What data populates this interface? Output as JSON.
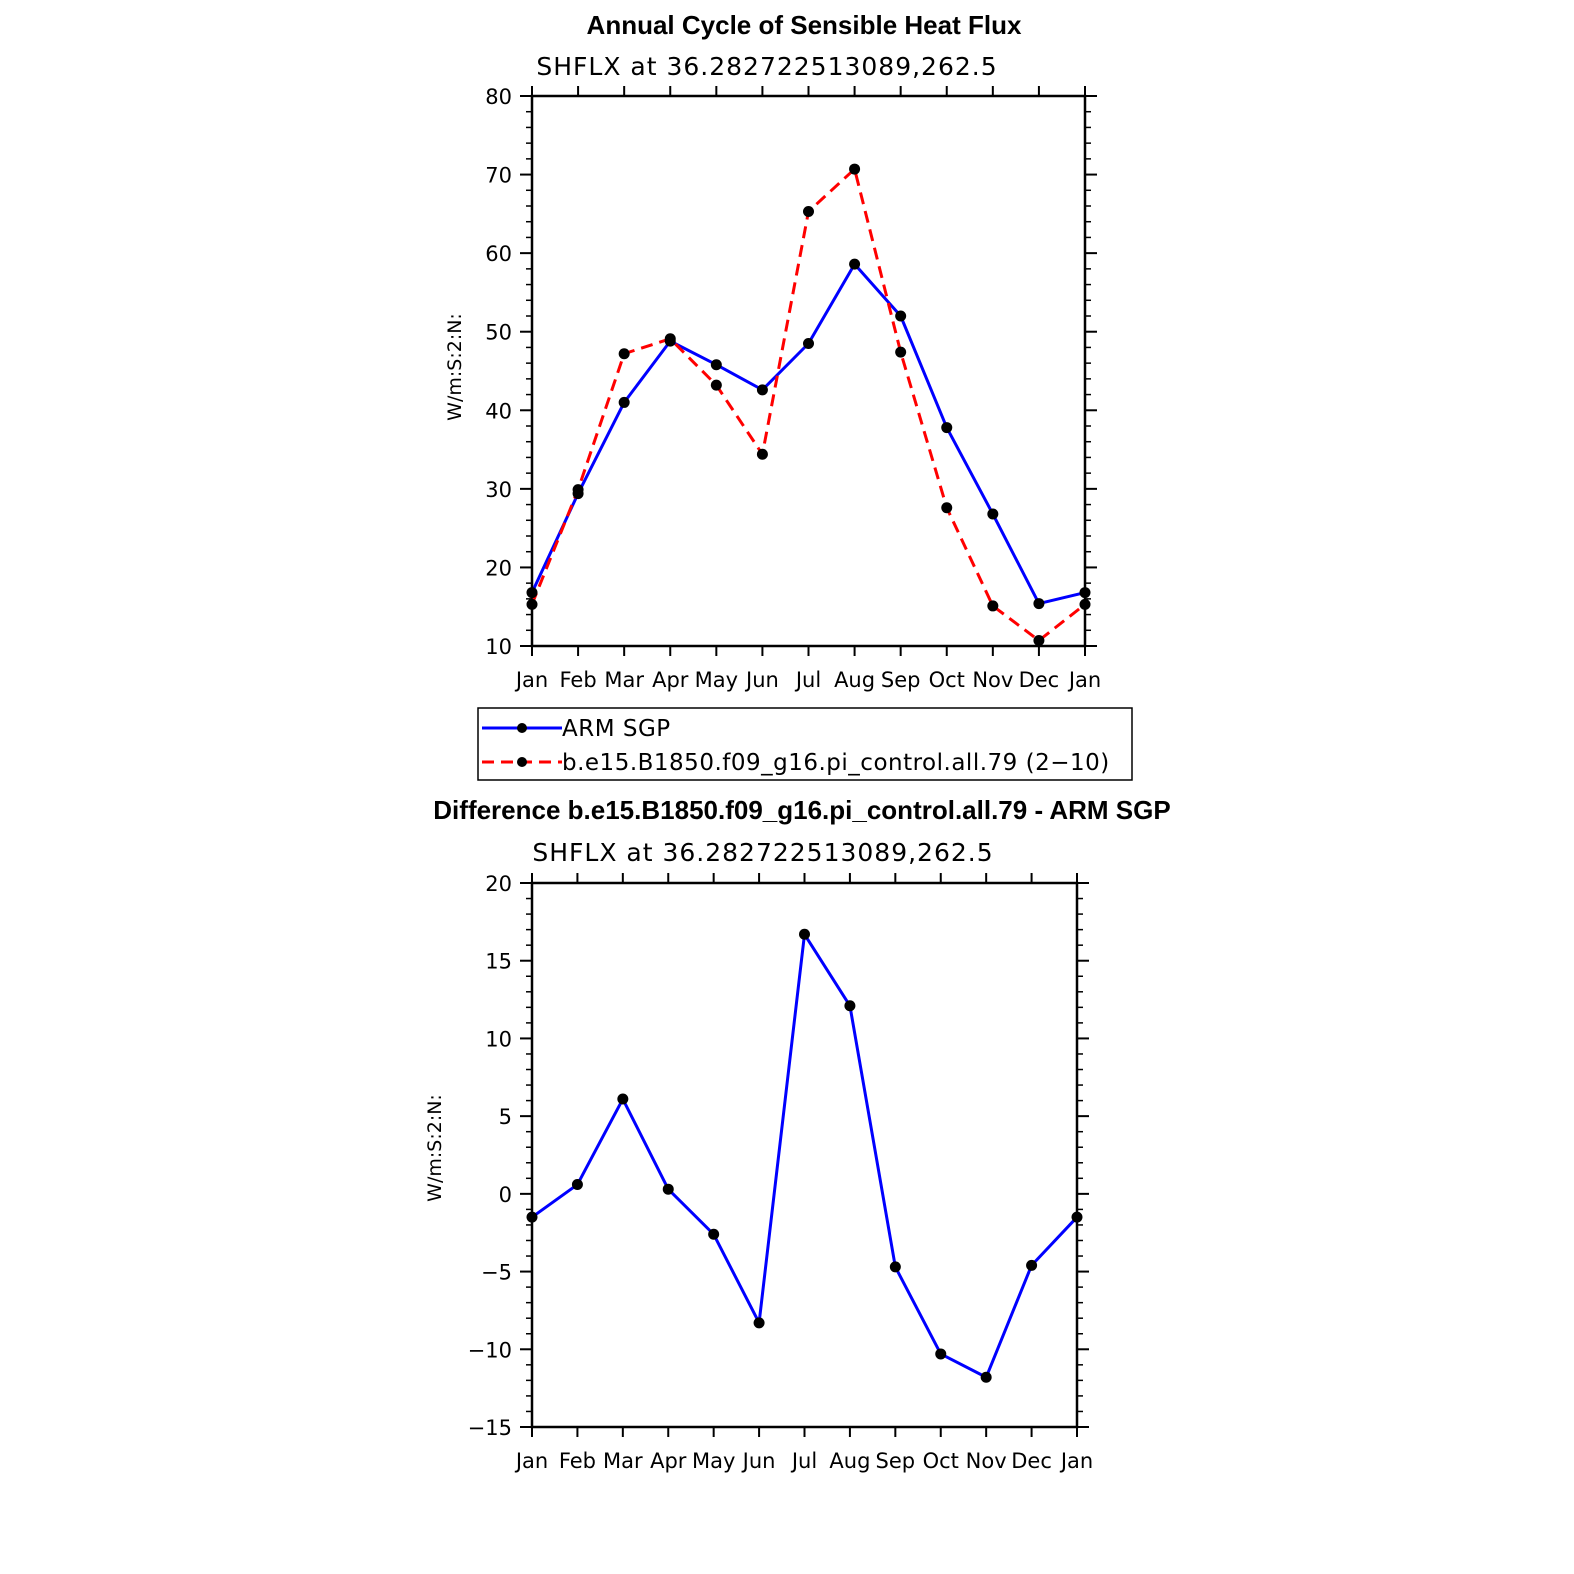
{
  "chart_data": [
    {
      "type": "line",
      "title": "Annual Cycle of Sensible Heat Flux",
      "subtitle": "SHFLX at 36.282722513089,262.5",
      "xlabel": "",
      "ylabel": "W/m:S:2:N:",
      "categories": [
        "Jan",
        "Feb",
        "Mar",
        "Apr",
        "May",
        "Jun",
        "Jul",
        "Aug",
        "Sep",
        "Oct",
        "Nov",
        "Dec",
        "Jan"
      ],
      "ylim": [
        10,
        80
      ],
      "yticks": [
        "10",
        "20",
        "30",
        "40",
        "50",
        "60",
        "70",
        "80"
      ],
      "series": [
        {
          "name": "ARM SGP",
          "color": "#0000ff",
          "dash": "solid",
          "values": [
            16.8,
            29.4,
            41.0,
            48.8,
            45.8,
            42.6,
            48.5,
            58.6,
            52.0,
            37.8,
            26.8,
            15.4,
            16.8
          ]
        },
        {
          "name": "b.e15.B1850.f09_g16.pi_control.all.79 (2−10)",
          "color": "#ff0000",
          "dash": "dashed",
          "values": [
            15.3,
            29.9,
            47.2,
            49.1,
            43.2,
            34.4,
            65.3,
            70.7,
            47.4,
            27.6,
            15.1,
            10.7,
            15.3
          ]
        }
      ],
      "legend": "below"
    },
    {
      "type": "line",
      "title": "Difference b.e15.B1850.f09_g16.pi_control.all.79 - ARM SGP",
      "subtitle": "SHFLX at 36.282722513089,262.5",
      "xlabel": "",
      "ylabel": "W/m:S:2:N:",
      "categories": [
        "Jan",
        "Feb",
        "Mar",
        "Apr",
        "May",
        "Jun",
        "Jul",
        "Aug",
        "Sep",
        "Oct",
        "Nov",
        "Dec",
        "Jan"
      ],
      "ylim": [
        -15,
        20
      ],
      "yticks": [
        "−15",
        "−10",
        "−5",
        "0",
        "5",
        "10",
        "15",
        "20"
      ],
      "series": [
        {
          "color": "#0000ff",
          "dash": "solid",
          "values": [
            -1.5,
            0.6,
            6.1,
            0.3,
            -2.6,
            -8.3,
            16.7,
            12.1,
            -4.7,
            -10.3,
            -11.8,
            -4.6,
            -1.5
          ]
        }
      ]
    }
  ]
}
